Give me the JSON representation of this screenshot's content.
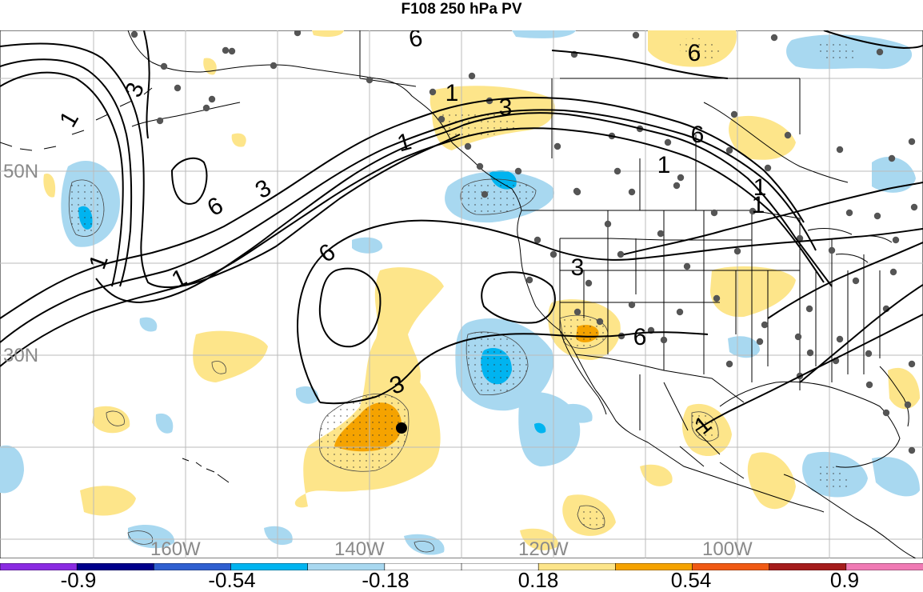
{
  "title": "F108 250 hPa PV",
  "map": {
    "lat_labels": [
      "50N",
      "30N"
    ],
    "lon_labels": [
      "160W",
      "140W",
      "120W",
      "100W"
    ],
    "contour_labels": [
      "6",
      "6",
      "3",
      "1",
      "6",
      "1",
      "3",
      "6",
      "1",
      "1",
      "6",
      "3",
      "6",
      "3",
      "1",
      "1",
      "1",
      "1",
      "3",
      "1"
    ]
  },
  "colorbar": {
    "labels": [
      "-0.9",
      "-0.54",
      "-0.18",
      "0.18",
      "0.54",
      "0.9"
    ],
    "colors": [
      "#8a2be2",
      "#00008b",
      "#2f5fd0",
      "#00b4f0",
      "#a8d8f0",
      "#ffffff",
      "#ffffff",
      "#fde58a",
      "#f5a300",
      "#f05a14",
      "#a51c1c",
      "#f07ab4"
    ]
  },
  "colors": {
    "light_blue": "#a8d8f0",
    "mid_blue": "#00b4f0",
    "light_yellow": "#fde58a",
    "orange": "#f5a300",
    "station_dot": "#555555",
    "grid": "#bbbbbb",
    "label_gray": "#8a8a8a"
  }
}
